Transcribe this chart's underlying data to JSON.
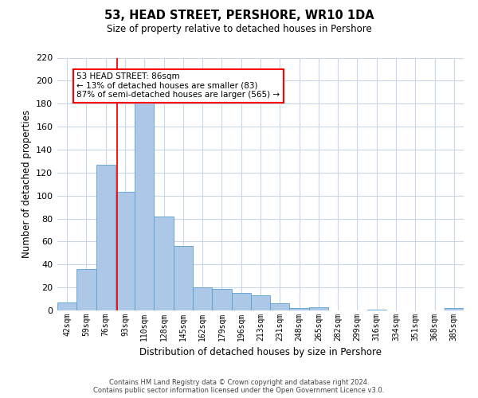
{
  "title": "53, HEAD STREET, PERSHORE, WR10 1DA",
  "subtitle": "Size of property relative to detached houses in Pershore",
  "xlabel": "Distribution of detached houses by size in Pershore",
  "ylabel": "Number of detached properties",
  "bar_labels": [
    "42sqm",
    "59sqm",
    "76sqm",
    "93sqm",
    "110sqm",
    "128sqm",
    "145sqm",
    "162sqm",
    "179sqm",
    "196sqm",
    "213sqm",
    "231sqm",
    "248sqm",
    "265sqm",
    "282sqm",
    "299sqm",
    "316sqm",
    "334sqm",
    "351sqm",
    "368sqm",
    "385sqm"
  ],
  "bar_values": [
    7,
    36,
    127,
    103,
    181,
    82,
    56,
    20,
    19,
    15,
    13,
    6,
    2,
    3,
    0,
    0,
    1,
    0,
    0,
    0,
    2
  ],
  "bar_color": "#adc8e6",
  "bar_edge_color": "#5a9fd4",
  "ylim": [
    0,
    220
  ],
  "yticks": [
    0,
    20,
    40,
    60,
    80,
    100,
    120,
    140,
    160,
    180,
    200,
    220
  ],
  "annotation_title": "53 HEAD STREET: 86sqm",
  "annotation_line1": "← 13% of detached houses are smaller (83)",
  "annotation_line2": "87% of semi-detached houses are larger (565) →",
  "footer_line1": "Contains HM Land Registry data © Crown copyright and database right 2024.",
  "footer_line2": "Contains public sector information licensed under the Open Government Licence v3.0.",
  "background_color": "#ffffff",
  "grid_color": "#c8d8e8",
  "red_line_index": 2.588
}
